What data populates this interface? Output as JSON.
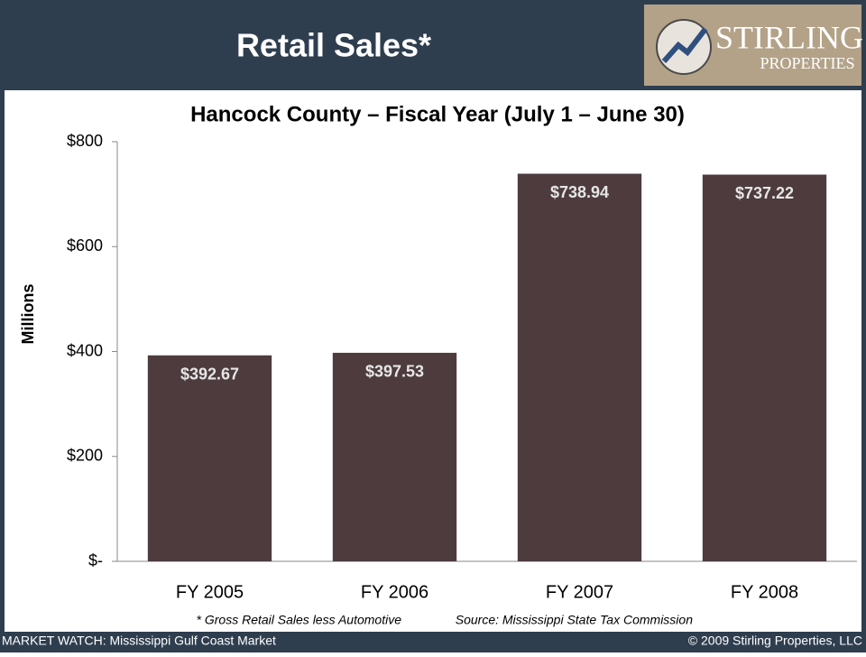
{
  "header": {
    "title": "Retail Sales*"
  },
  "logo": {
    "name": "STIRLING",
    "sub": "PROPERTIES"
  },
  "footer": {
    "left": "MARKET WATCH: Mississippi Gulf Coast Market",
    "right": "© 2009 Stirling Properties, LLC"
  },
  "chart_data": {
    "type": "bar",
    "title": "Hancock County – Fiscal Year (July 1 – June 30)",
    "y_label": "Millions",
    "categories": [
      "FY 2005",
      "FY 2006",
      "FY 2007",
      "FY 2008"
    ],
    "values": [
      392.67,
      397.53,
      738.94,
      737.22
    ],
    "value_labels": [
      "$392.67",
      "$397.53",
      "$738.94",
      "$737.22"
    ],
    "color": "#4d3b3d",
    "ylim": [
      0,
      800
    ],
    "yticks": [
      {
        "value": 0,
        "label": "$-"
      },
      {
        "value": 200,
        "label": "$200"
      },
      {
        "value": 400,
        "label": "$400"
      },
      {
        "value": 600,
        "label": "$600"
      },
      {
        "value": 800,
        "label": "$800"
      }
    ],
    "note": "* Gross Retail Sales less Automotive",
    "source": "Source: Mississippi State Tax Commission"
  }
}
